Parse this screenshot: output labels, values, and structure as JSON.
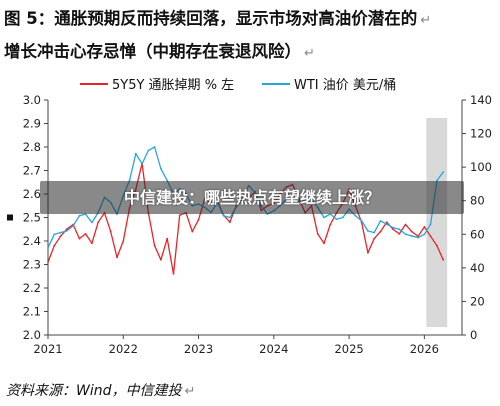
{
  "figure": {
    "title_line1": "图 5：通胀预期反而持续回落，显示市场对高油价潜在的",
    "title_line2": "增长冲击心存忌惮（中期存在衰退风险）",
    "return_mark": "↵",
    "source_label": "资料来源：",
    "source_value": "Wind，中信建投"
  },
  "overlay": {
    "banner_text": "中信建投：哪些热点有望继续上涨？"
  },
  "colors": {
    "series_inflation": "#e8242a",
    "series_wti": "#2aa5dc",
    "highlight": "#d9d9d9",
    "axis": "#444444"
  },
  "chart_data": {
    "type": "line",
    "x_ticks": [
      "2021",
      "2022",
      "2023",
      "2024",
      "2025",
      "2026"
    ],
    "xlim": [
      "2021-01",
      "2026-07"
    ],
    "left_axis": {
      "ylim": [
        2.0,
        3.0
      ],
      "ticks": [
        "2.0",
        "2.1",
        "2.2",
        "2.3",
        "2.4",
        "2.5",
        "2.6",
        "2.7",
        "2.8",
        "2.9",
        "3.0"
      ],
      "unit": "%"
    },
    "right_axis": {
      "ylim": [
        0,
        140
      ],
      "ticks": [
        "0",
        "20",
        "40",
        "60",
        "80",
        "100",
        "120",
        "140"
      ],
      "unit": "美元/桶"
    },
    "highlight_region": [
      "2026-01",
      "2026-04"
    ],
    "series": [
      {
        "name": "5Y5Y通胀掉期％左",
        "legend": "5Y5Y 通胀掉期 % 左",
        "axis": "left",
        "points": [
          [
            "2021-01",
            2.31
          ],
          [
            "2021-02",
            2.38
          ],
          [
            "2021-03",
            2.42
          ],
          [
            "2021-04",
            2.45
          ],
          [
            "2021-05",
            2.47
          ],
          [
            "2021-06",
            2.41
          ],
          [
            "2021-07",
            2.43
          ],
          [
            "2021-08",
            2.39
          ],
          [
            "2021-09",
            2.48
          ],
          [
            "2021-10",
            2.52
          ],
          [
            "2021-11",
            2.44
          ],
          [
            "2021-12",
            2.33
          ],
          [
            "2022-01",
            2.4
          ],
          [
            "2022-02",
            2.54
          ],
          [
            "2022-03",
            2.62
          ],
          [
            "2022-04",
            2.73
          ],
          [
            "2022-05",
            2.52
          ],
          [
            "2022-06",
            2.38
          ],
          [
            "2022-07",
            2.32
          ],
          [
            "2022-08",
            2.41
          ],
          [
            "2022-09",
            2.26
          ],
          [
            "2022-10",
            2.51
          ],
          [
            "2022-11",
            2.52
          ],
          [
            "2022-12",
            2.44
          ],
          [
            "2023-01",
            2.49
          ],
          [
            "2023-02",
            2.58
          ],
          [
            "2023-03",
            2.56
          ],
          [
            "2023-04",
            2.57
          ],
          [
            "2023-05",
            2.51
          ],
          [
            "2023-06",
            2.48
          ],
          [
            "2023-07",
            2.55
          ],
          [
            "2023-08",
            2.6
          ],
          [
            "2023-09",
            2.58
          ],
          [
            "2023-10",
            2.61
          ],
          [
            "2023-11",
            2.53
          ],
          [
            "2023-12",
            2.55
          ],
          [
            "2024-01",
            2.56
          ],
          [
            "2024-02",
            2.6
          ],
          [
            "2024-03",
            2.63
          ],
          [
            "2024-04",
            2.64
          ],
          [
            "2024-05",
            2.58
          ],
          [
            "2024-06",
            2.52
          ],
          [
            "2024-07",
            2.55
          ],
          [
            "2024-08",
            2.43
          ],
          [
            "2024-09",
            2.39
          ],
          [
            "2024-10",
            2.47
          ],
          [
            "2024-11",
            2.52
          ],
          [
            "2024-12",
            2.56
          ],
          [
            "2025-01",
            2.62
          ],
          [
            "2025-02",
            2.55
          ],
          [
            "2025-03",
            2.48
          ],
          [
            "2025-04",
            2.35
          ],
          [
            "2025-05",
            2.41
          ],
          [
            "2025-06",
            2.44
          ],
          [
            "2025-07",
            2.48
          ],
          [
            "2025-08",
            2.45
          ],
          [
            "2025-09",
            2.43
          ],
          [
            "2025-10",
            2.47
          ],
          [
            "2025-11",
            2.44
          ],
          [
            "2025-12",
            2.42
          ],
          [
            "2026-01",
            2.46
          ],
          [
            "2026-02",
            2.42
          ],
          [
            "2026-03",
            2.38
          ],
          [
            "2026-04",
            2.32
          ]
        ]
      },
      {
        "name": "WTI油价美元/桶",
        "legend": "WTI 油价  美元/桶",
        "axis": "right",
        "points": [
          [
            "2021-01",
            52
          ],
          [
            "2021-02",
            60
          ],
          [
            "2021-03",
            61
          ],
          [
            "2021-04",
            62
          ],
          [
            "2021-05",
            65
          ],
          [
            "2021-06",
            71
          ],
          [
            "2021-07",
            72
          ],
          [
            "2021-08",
            67
          ],
          [
            "2021-09",
            73
          ],
          [
            "2021-10",
            82
          ],
          [
            "2021-11",
            79
          ],
          [
            "2021-12",
            72
          ],
          [
            "2022-01",
            83
          ],
          [
            "2022-02",
            92
          ],
          [
            "2022-03",
            108
          ],
          [
            "2022-04",
            102
          ],
          [
            "2022-05",
            110
          ],
          [
            "2022-06",
            112
          ],
          [
            "2022-07",
            99
          ],
          [
            "2022-08",
            92
          ],
          [
            "2022-09",
            84
          ],
          [
            "2022-10",
            87
          ],
          [
            "2022-11",
            84
          ],
          [
            "2022-12",
            77
          ],
          [
            "2023-01",
            78
          ],
          [
            "2023-02",
            76
          ],
          [
            "2023-03",
            73
          ],
          [
            "2023-04",
            79
          ],
          [
            "2023-05",
            71
          ],
          [
            "2023-06",
            70
          ],
          [
            "2023-07",
            76
          ],
          [
            "2023-08",
            81
          ],
          [
            "2023-09",
            89
          ],
          [
            "2023-10",
            85
          ],
          [
            "2023-11",
            77
          ],
          [
            "2023-12",
            72
          ],
          [
            "2024-01",
            74
          ],
          [
            "2024-02",
            77
          ],
          [
            "2024-03",
            81
          ],
          [
            "2024-04",
            84
          ],
          [
            "2024-05",
            79
          ],
          [
            "2024-06",
            80
          ],
          [
            "2024-07",
            81
          ],
          [
            "2024-08",
            76
          ],
          [
            "2024-09",
            70
          ],
          [
            "2024-10",
            72
          ],
          [
            "2024-11",
            69
          ],
          [
            "2024-12",
            70
          ],
          [
            "2025-01",
            75
          ],
          [
            "2025-02",
            71
          ],
          [
            "2025-03",
            68
          ],
          [
            "2025-04",
            62
          ],
          [
            "2025-05",
            61
          ],
          [
            "2025-06",
            68
          ],
          [
            "2025-07",
            66
          ],
          [
            "2025-08",
            64
          ],
          [
            "2025-09",
            63
          ],
          [
            "2025-10",
            60
          ],
          [
            "2025-11",
            59
          ],
          [
            "2025-12",
            58
          ],
          [
            "2026-01",
            60
          ],
          [
            "2026-02",
            66
          ],
          [
            "2026-03",
            92
          ],
          [
            "2026-04",
            97
          ]
        ]
      }
    ]
  }
}
